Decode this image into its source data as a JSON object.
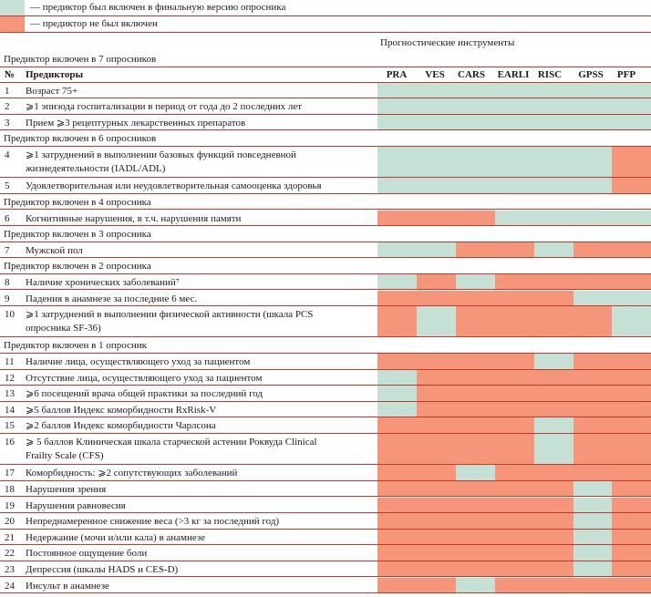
{
  "legend": [
    {
      "color": "green",
      "text": "— предиктор был включен в финальную версию опросника"
    },
    {
      "color": "orange",
      "text": "— предиктор не был включен"
    }
  ],
  "colors": {
    "green": "#c5e0d4",
    "orange": "#f5957a",
    "line": "#c0392b"
  },
  "header": {
    "group_title": "Прогностические инструменты",
    "num_label": "№",
    "pred_label": "Предикторы",
    "instruments": [
      "PRA",
      "VES",
      "CARS",
      "EARLI",
      "RISC",
      "GPSS",
      "PFP"
    ]
  },
  "rows": [
    {
      "type": "section",
      "text": "Предиктор включен в 7 опросников"
    },
    {
      "type": "data",
      "num": "1",
      "lines": [
        "Возраст 75+"
      ],
      "cells": [
        "g",
        "g",
        "g",
        "g",
        "g",
        "g",
        "g"
      ]
    },
    {
      "type": "data",
      "num": "2",
      "lines": [
        "⩾1 эпизода госпитализации в период от года до 2 последних лет"
      ],
      "cells": [
        "g",
        "g",
        "g",
        "g",
        "g",
        "g",
        "g"
      ]
    },
    {
      "type": "data",
      "num": "3",
      "lines": [
        "Прием ⩾3 рецептурных лекарственных препаратов"
      ],
      "cells": [
        "g",
        "g",
        "g",
        "g",
        "g",
        "g",
        "g"
      ]
    },
    {
      "type": "section",
      "text": "Предиктор включен в 6 опросников"
    },
    {
      "type": "data",
      "num": "4",
      "lines": [
        "⩾1 затруднений в выполнении базовых функций повседневной",
        "жизнедеятельности (IADL/ADL)"
      ],
      "cells": [
        "g",
        "g",
        "g",
        "g",
        "g",
        "g",
        "o"
      ]
    },
    {
      "type": "data",
      "num": "5",
      "lines": [
        "Удовлетворительная или неудовлетворительная самооценка здоровья"
      ],
      "cells": [
        "g",
        "g",
        "g",
        "g",
        "g",
        "g",
        "o"
      ]
    },
    {
      "type": "section",
      "text": "Предиктор включен в 4 опросника"
    },
    {
      "type": "data",
      "num": "6",
      "lines": [
        "Когнитивные нарушения, в т.ч. нарушения памяти"
      ],
      "cells": [
        "o",
        "o",
        "o",
        "g",
        "g",
        "g",
        "g"
      ]
    },
    {
      "type": "section",
      "text": "Предиктор включен в 3 опросника"
    },
    {
      "type": "data",
      "num": "7",
      "lines": [
        "Мужской пол"
      ],
      "cells": [
        "g",
        "g",
        "o",
        "o",
        "g",
        "o",
        "o"
      ]
    },
    {
      "type": "section",
      "text": "Предиктор включен в 2 опросника"
    },
    {
      "type": "data",
      "num": "8",
      "lines": [
        "Наличие хронических заболеваний⁷"
      ],
      "cells": [
        "g",
        "o",
        "g",
        "o",
        "o",
        "o",
        "o"
      ]
    },
    {
      "type": "data",
      "num": "9",
      "lines": [
        "Падения в анамнезе за последние 6 мес."
      ],
      "cells": [
        "o",
        "o",
        "o",
        "o",
        "o",
        "g",
        "g"
      ]
    },
    {
      "type": "data",
      "num": "10",
      "lines": [
        "⩾1 затруднений в выполнении физической активности (шкала PCS",
        "опросника SF-36)"
      ],
      "cells": [
        "o",
        "g",
        "o",
        "o",
        "o",
        "o",
        "g"
      ]
    },
    {
      "type": "section",
      "text": "Предиктор включен в 1 опросник"
    },
    {
      "type": "data",
      "num": "11",
      "lines": [
        "Наличие лица, осуществляющего уход за пациентом"
      ],
      "cells": [
        "o",
        "o",
        "o",
        "o",
        "g",
        "o",
        "o"
      ]
    },
    {
      "type": "data",
      "num": "12",
      "lines": [
        "Отсутствие лица, осуществляющего уход за пациентом"
      ],
      "cells": [
        "g",
        "o",
        "o",
        "o",
        "o",
        "o",
        "o"
      ]
    },
    {
      "type": "data",
      "num": "13",
      "lines": [
        "⩾6 посещений врача общей практики за последний год"
      ],
      "cells": [
        "g",
        "o",
        "o",
        "o",
        "o",
        "o",
        "o"
      ]
    },
    {
      "type": "data",
      "num": "14",
      "lines": [
        "⩾5 баллов Индекс коморбидности RxRisk-V"
      ],
      "cells": [
        "g",
        "o",
        "o",
        "o",
        "o",
        "o",
        "o"
      ]
    },
    {
      "type": "data",
      "num": "15",
      "lines": [
        "⩾2 баллов Индекс коморбидности Чарлсона"
      ],
      "cells": [
        "o",
        "o",
        "o",
        "o",
        "g",
        "o",
        "o"
      ]
    },
    {
      "type": "data",
      "num": "16",
      "lines": [
        "⩾ 5 баллов Клиническая шкала старческой астении Роквуда Clinical",
        "Frailty Scale (CFS)"
      ],
      "cells": [
        "o",
        "o",
        "o",
        "o",
        "g",
        "o",
        "o"
      ]
    },
    {
      "type": "data",
      "num": "17",
      "lines": [
        "Коморбидность: ⩾2 сопутствующих заболеваний"
      ],
      "cells": [
        "o",
        "o",
        "g",
        "o",
        "o",
        "o",
        "o"
      ]
    },
    {
      "type": "data",
      "num": "18",
      "lines": [
        "Нарушения зрения"
      ],
      "cells": [
        "o",
        "o",
        "o",
        "o",
        "o",
        "g",
        "o"
      ]
    },
    {
      "type": "data",
      "num": "19",
      "lines": [
        "Нарушения равновесия"
      ],
      "cells": [
        "o",
        "o",
        "o",
        "o",
        "o",
        "g",
        "o"
      ]
    },
    {
      "type": "data",
      "num": "20",
      "lines": [
        "Непреднамеренное снижение веса (>3 кг за последний год)"
      ],
      "cells": [
        "o",
        "o",
        "o",
        "o",
        "o",
        "g",
        "o"
      ]
    },
    {
      "type": "data",
      "num": "21",
      "lines": [
        "Недержание (мочи и/или кала) в анамнезе"
      ],
      "cells": [
        "o",
        "o",
        "o",
        "o",
        "o",
        "g",
        "o"
      ]
    },
    {
      "type": "data",
      "num": "22",
      "lines": [
        "Постоянное ощущение боли"
      ],
      "cells": [
        "o",
        "o",
        "o",
        "o",
        "o",
        "g",
        "o"
      ]
    },
    {
      "type": "data",
      "num": "23",
      "lines": [
        "Депрессия (шкалы HADS и CES-D)"
      ],
      "cells": [
        "o",
        "o",
        "o",
        "o",
        "o",
        "g",
        "o"
      ]
    },
    {
      "type": "data",
      "num": "24",
      "lines": [
        "Инсульт в анамнезе"
      ],
      "cells": [
        "o",
        "o",
        "g",
        "o",
        "o",
        "o",
        "o"
      ]
    }
  ]
}
